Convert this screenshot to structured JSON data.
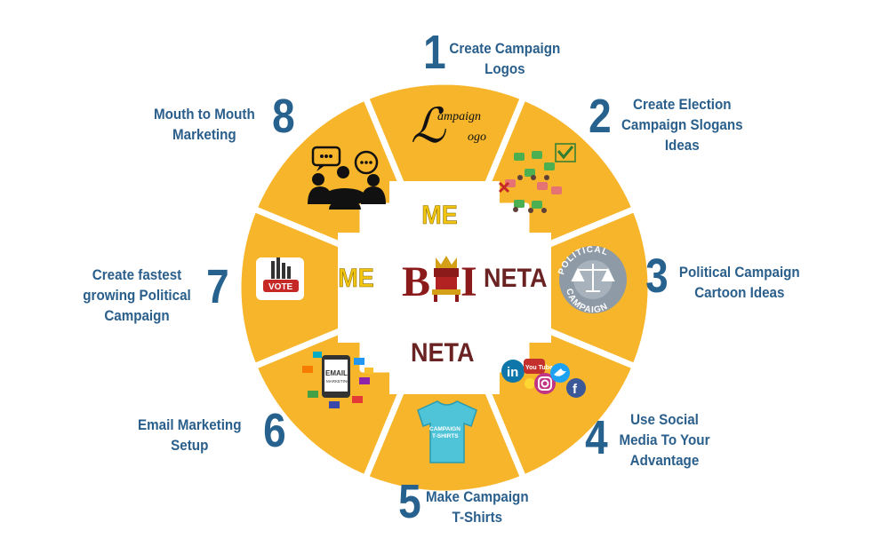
{
  "steps": [
    {
      "number": "1",
      "label_line1": "Create Campaign",
      "label_line2": "Logos",
      "label_line3": ""
    },
    {
      "number": "2",
      "label_line1": "Create Election",
      "label_line2": "Campaign Slogans",
      "label_line3": "Ideas"
    },
    {
      "number": "3",
      "label_line1": "Political Campaign",
      "label_line2": "Cartoon Ideas",
      "label_line3": ""
    },
    {
      "number": "4",
      "label_line1": "Use Social",
      "label_line2": "Media To Your",
      "label_line3": "Advantage"
    },
    {
      "number": "5",
      "label_line1": "Make Campaign",
      "label_line2": "T-Shirts",
      "label_line3": ""
    },
    {
      "number": "6",
      "label_line1": "Email Marketing",
      "label_line2": "Setup",
      "label_line3": ""
    },
    {
      "number": "7",
      "label_line1": "Create fastest",
      "label_line2": "growing Political",
      "label_line3": "Campaign"
    },
    {
      "number": "8",
      "label_line1": "Mouth to Mouth",
      "label_line2": "Marketing",
      "label_line3": ""
    }
  ],
  "center": {
    "top_word": "ME",
    "left_word": "ME",
    "right_word": "NETA",
    "bottom_word": "NETA",
    "logo_left_letter": "B",
    "logo_right_letter": "I"
  },
  "icon_text": {
    "logo_word1": "ampaign",
    "logo_word2": "ogo",
    "political_top": "POLITICAL",
    "political_bottom": "CAMPAIGN",
    "vote": "VOTE",
    "email": "EMAIL",
    "email_sub": "MARKETING",
    "tshirt1": "CAMPAIGN",
    "tshirt2": "T-SHIRTS",
    "youtube": "You Tube",
    "linkedin": "in",
    "facebook": "f"
  },
  "colors": {
    "segment": "#f7b52c",
    "segment_dark": "#e9a21b",
    "number": "#27628f",
    "label": "#2a5f8c",
    "me": "#f1c40f",
    "neta": "#6a2222",
    "logo_red": "#8b1a1a",
    "logo_gold": "#d4a017"
  }
}
